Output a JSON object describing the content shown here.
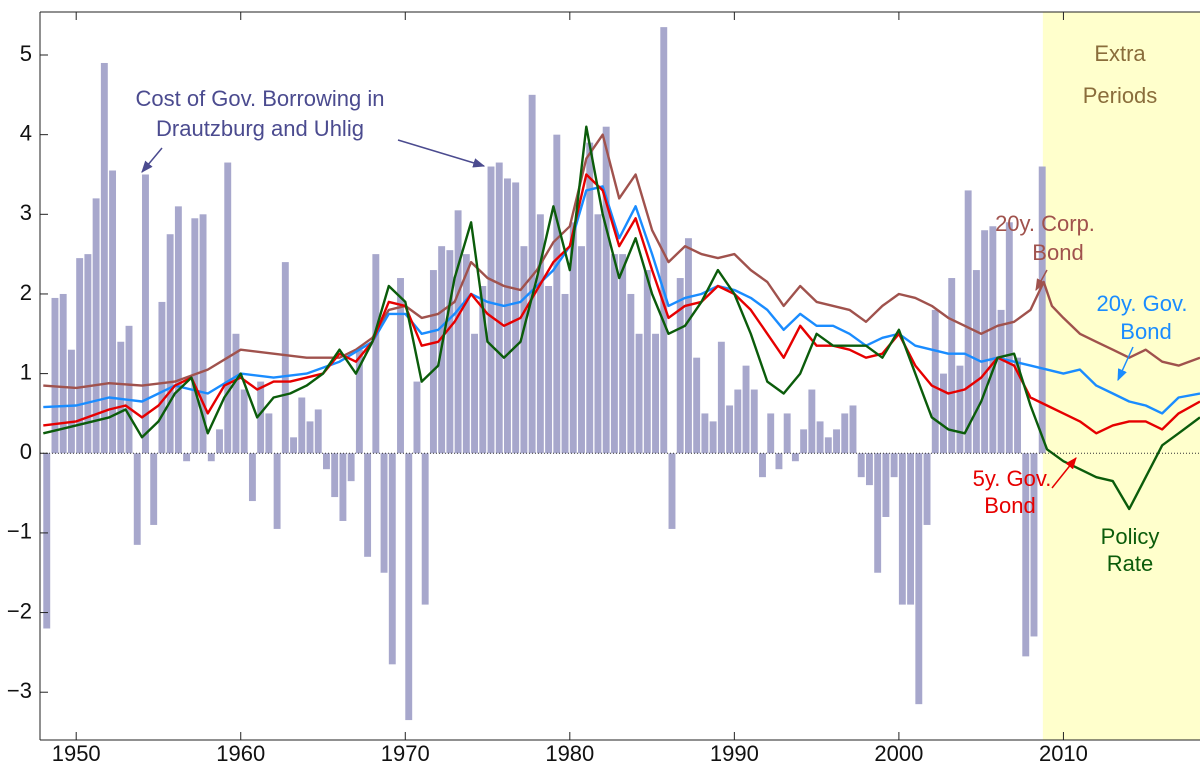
{
  "chart_data": {
    "type": "combo",
    "xlim": [
      1947.8,
      2018.3
    ],
    "ylim": [
      -3.6,
      5.54
    ],
    "xticks": [
      1950,
      1960,
      1970,
      1980,
      1990,
      2000,
      2010
    ],
    "yticks": [
      {
        "value": -3,
        "label": "−3"
      },
      {
        "value": -2,
        "label": "−2"
      },
      {
        "value": -1,
        "label": "−1"
      },
      0,
      1,
      2,
      3,
      4,
      5
    ],
    "shade_from": 2008.75,
    "shade_color": "#ffffcc",
    "shade_label": [
      "Extra",
      "Periods"
    ],
    "series": [
      {
        "type": "bar",
        "label": [
          "Cost of Gov. Borrowing in",
          "Drautzburg and Uhlig"
        ],
        "color": "#a7a7cc",
        "bar_width": 0.42,
        "x": [
          1948.0,
          1948.5,
          1949.0,
          1949.5,
          1950.0,
          1950.5,
          1951.0,
          1951.5,
          1952.0,
          1952.5,
          1953.0,
          1953.5,
          1954.0,
          1954.5,
          1955.0,
          1955.5,
          1956.0,
          1956.5,
          1957.0,
          1957.5,
          1958.0,
          1958.5,
          1959.0,
          1959.5,
          1960.0,
          1960.5,
          1961.0,
          1961.5,
          1962.0,
          1962.5,
          1963.0,
          1963.5,
          1964.0,
          1964.5,
          1965.0,
          1965.5,
          1966.0,
          1966.5,
          1967.0,
          1967.5,
          1968.0,
          1968.5,
          1969.0,
          1969.5,
          1970.0,
          1970.5,
          1971.0,
          1971.5,
          1972.0,
          1972.5,
          1973.0,
          1973.5,
          1974.0,
          1974.5,
          1975.0,
          1975.5,
          1976.0,
          1976.5,
          1977.0,
          1977.5,
          1978.0,
          1978.5,
          1979.0,
          1979.5,
          1980.0,
          1980.5,
          1981.0,
          1981.5,
          1982.0,
          1982.5,
          1983.0,
          1983.5,
          1984.0,
          1984.5,
          1985.0,
          1985.5,
          1986.0,
          1986.5,
          1987.0,
          1987.5,
          1988.0,
          1988.5,
          1989.0,
          1989.5,
          1990.0,
          1990.5,
          1991.0,
          1991.5,
          1992.0,
          1992.5,
          1993.0,
          1993.5,
          1994.0,
          1994.5,
          1995.0,
          1995.5,
          1996.0,
          1996.5,
          1997.0,
          1997.5,
          1998.0,
          1998.5,
          1999.0,
          1999.5,
          2000.0,
          2000.5,
          2001.0,
          2001.5,
          2002.0,
          2002.5,
          2003.0,
          2003.5,
          2004.0,
          2004.5,
          2005.0,
          2005.5,
          2006.0,
          2006.5,
          2007.0,
          2007.5,
          2008.0,
          2008.5
        ],
        "values": [
          -2.2,
          1.95,
          2.0,
          1.3,
          2.45,
          2.5,
          3.2,
          4.9,
          3.55,
          1.4,
          1.6,
          -1.15,
          3.5,
          -0.9,
          1.9,
          2.75,
          3.1,
          -0.1,
          2.95,
          3.0,
          -0.1,
          0.3,
          3.65,
          1.5,
          0.8,
          -0.6,
          0.9,
          0.5,
          -0.95,
          2.4,
          0.2,
          0.7,
          0.4,
          0.55,
          -0.2,
          -0.55,
          -0.85,
          -0.35,
          1.3,
          -1.3,
          2.5,
          -1.5,
          -2.65,
          2.2,
          -3.35,
          0.9,
          -1.9,
          2.3,
          2.6,
          2.55,
          3.05,
          2.5,
          1.5,
          2.1,
          3.6,
          3.65,
          3.45,
          3.4,
          2.6,
          4.5,
          3.0,
          2.1,
          4.0,
          2.0,
          2.9,
          2.6,
          3.9,
          3.0,
          4.1,
          2.5,
          2.5,
          2.0,
          1.5,
          2.3,
          1.5,
          5.35,
          -0.95,
          2.2,
          2.7,
          1.2,
          0.5,
          0.4,
          1.4,
          0.6,
          0.8,
          1.1,
          0.8,
          -0.3,
          0.5,
          -0.2,
          0.5,
          -0.1,
          0.3,
          0.8,
          0.4,
          0.2,
          0.3,
          0.5,
          0.6,
          -0.3,
          -0.4,
          -1.5,
          -0.8,
          -0.3,
          -1.9,
          -1.9,
          -3.15,
          -0.9,
          1.8,
          1.0,
          2.2,
          1.1,
          3.3,
          2.3,
          2.8,
          2.85,
          1.8,
          2.9,
          1.2,
          -2.55,
          -2.3,
          3.6
        ]
      },
      {
        "type": "line",
        "label": [
          "20y. Corp.",
          "Bond"
        ],
        "color": "#a0524d",
        "x": [
          1948,
          1950,
          1952,
          1954,
          1956,
          1958,
          1960,
          1962,
          1964,
          1966,
          1967,
          1968,
          1969,
          1970,
          1971,
          1972,
          1973,
          1974,
          1975,
          1976,
          1977,
          1978,
          1979,
          1980,
          1981,
          1982,
          1983,
          1984,
          1985,
          1986,
          1987,
          1988,
          1989,
          1990,
          1991,
          1992,
          1993,
          1994,
          1995,
          1996,
          1997,
          1998,
          1999,
          2000,
          2001,
          2002,
          2003,
          2004,
          2005,
          2006,
          2007,
          2008,
          2008.8,
          2009.3,
          2010,
          2011,
          2012,
          2013,
          2014,
          2015,
          2016,
          2017,
          2018.3
        ],
        "values": [
          0.85,
          0.82,
          0.88,
          0.85,
          0.9,
          1.05,
          1.3,
          1.25,
          1.2,
          1.2,
          1.3,
          1.45,
          1.8,
          1.85,
          1.7,
          1.75,
          1.9,
          2.4,
          2.2,
          2.1,
          2.05,
          2.3,
          2.65,
          2.85,
          3.7,
          4.0,
          3.2,
          3.5,
          2.8,
          2.4,
          2.6,
          2.5,
          2.45,
          2.5,
          2.3,
          2.15,
          1.85,
          2.1,
          1.9,
          1.85,
          1.8,
          1.65,
          1.85,
          2.0,
          1.95,
          1.85,
          1.7,
          1.6,
          1.5,
          1.6,
          1.65,
          1.8,
          2.15,
          1.85,
          1.7,
          1.5,
          1.4,
          1.3,
          1.2,
          1.3,
          1.15,
          1.1,
          1.2
        ]
      },
      {
        "type": "line",
        "label": [
          "20y. Gov.",
          "Bond"
        ],
        "color": "#1a8cff",
        "x": [
          1948,
          1950,
          1952,
          1954,
          1956,
          1958,
          1960,
          1962,
          1964,
          1966,
          1968,
          1969,
          1970,
          1971,
          1972,
          1973,
          1974,
          1975,
          1976,
          1977,
          1978,
          1979,
          1980,
          1981,
          1982,
          1983,
          1984,
          1985,
          1986,
          1987,
          1988,
          1989,
          1990,
          1991,
          1992,
          1993,
          1994,
          1995,
          1996,
          1997,
          1998,
          1999,
          2000,
          2001,
          2002,
          2003,
          2004,
          2005,
          2006,
          2007,
          2008,
          2009,
          2010,
          2011,
          2012,
          2013,
          2014,
          2015,
          2016,
          2017,
          2018.3
        ],
        "values": [
          0.58,
          0.6,
          0.7,
          0.65,
          0.85,
          0.75,
          1.0,
          0.95,
          1.0,
          1.15,
          1.4,
          1.75,
          1.75,
          1.5,
          1.55,
          1.75,
          2.0,
          1.9,
          1.85,
          1.9,
          2.1,
          2.3,
          2.6,
          3.3,
          3.35,
          2.7,
          3.1,
          2.5,
          1.85,
          1.95,
          2.0,
          2.1,
          2.05,
          1.95,
          1.8,
          1.55,
          1.75,
          1.6,
          1.6,
          1.5,
          1.35,
          1.45,
          1.5,
          1.35,
          1.3,
          1.25,
          1.25,
          1.15,
          1.2,
          1.15,
          1.1,
          1.05,
          1.0,
          1.05,
          0.85,
          0.75,
          0.65,
          0.6,
          0.5,
          0.7,
          0.75
        ]
      },
      {
        "type": "line",
        "label": [
          "5y. Gov.",
          "Bond"
        ],
        "color": "#e60000",
        "x": [
          1948,
          1950,
          1952,
          1953,
          1954,
          1955,
          1956,
          1957,
          1958,
          1959,
          1960,
          1961,
          1962,
          1963,
          1964,
          1965,
          1966,
          1967,
          1968,
          1969,
          1970,
          1971,
          1972,
          1973,
          1974,
          1975,
          1976,
          1977,
          1978,
          1979,
          1980,
          1981,
          1982,
          1983,
          1984,
          1985,
          1986,
          1987,
          1988,
          1989,
          1990,
          1991,
          1992,
          1993,
          1994,
          1995,
          1996,
          1997,
          1998,
          1999,
          2000,
          2001,
          2002,
          2003,
          2004,
          2005,
          2006,
          2007,
          2008,
          2009,
          2010,
          2011,
          2012,
          2013,
          2014,
          2015,
          2016,
          2017,
          2018.3
        ],
        "values": [
          0.35,
          0.4,
          0.55,
          0.6,
          0.45,
          0.6,
          0.85,
          0.95,
          0.5,
          0.85,
          0.95,
          0.8,
          0.9,
          0.9,
          0.95,
          1.0,
          1.25,
          1.15,
          1.4,
          1.9,
          1.85,
          1.35,
          1.4,
          1.65,
          2.0,
          1.75,
          1.6,
          1.7,
          2.05,
          2.4,
          2.6,
          3.5,
          3.3,
          2.6,
          2.95,
          2.3,
          1.7,
          1.85,
          1.9,
          2.1,
          2.0,
          1.8,
          1.5,
          1.2,
          1.6,
          1.35,
          1.35,
          1.3,
          1.2,
          1.25,
          1.5,
          1.1,
          0.85,
          0.75,
          0.8,
          0.95,
          1.2,
          1.1,
          0.7,
          0.6,
          0.5,
          0.4,
          0.25,
          0.35,
          0.4,
          0.4,
          0.3,
          0.5,
          0.65
        ]
      },
      {
        "type": "line",
        "label": [
          "Policy",
          "Rate"
        ],
        "color": "#0b5c0b",
        "x": [
          1948,
          1949,
          1950,
          1951,
          1952,
          1953,
          1954,
          1955,
          1956,
          1957,
          1958,
          1959,
          1960,
          1961,
          1962,
          1963,
          1964,
          1965,
          1966,
          1967,
          1968,
          1969,
          1970,
          1971,
          1972,
          1973,
          1974,
          1975,
          1976,
          1977,
          1978,
          1979,
          1980,
          1981,
          1982,
          1983,
          1984,
          1985,
          1986,
          1987,
          1988,
          1989,
          1990,
          1991,
          1992,
          1993,
          1994,
          1995,
          1996,
          1997,
          1998,
          1999,
          2000,
          2001,
          2002,
          2003,
          2004,
          2005,
          2006,
          2007,
          2008,
          2009,
          2010,
          2011,
          2012,
          2013,
          2014,
          2015,
          2016,
          2017,
          2018.3
        ],
        "values": [
          0.25,
          0.3,
          0.35,
          0.4,
          0.45,
          0.55,
          0.2,
          0.4,
          0.75,
          0.95,
          0.25,
          0.7,
          1.0,
          0.45,
          0.7,
          0.75,
          0.85,
          1.0,
          1.3,
          1.0,
          1.4,
          2.1,
          1.9,
          0.9,
          1.1,
          2.2,
          2.9,
          1.4,
          1.2,
          1.4,
          2.2,
          3.1,
          2.3,
          4.1,
          3.0,
          2.2,
          2.7,
          2.0,
          1.5,
          1.6,
          1.9,
          2.3,
          2.0,
          1.5,
          0.9,
          0.75,
          1.0,
          1.5,
          1.35,
          1.35,
          1.35,
          1.2,
          1.55,
          1.0,
          0.45,
          0.3,
          0.25,
          0.65,
          1.2,
          1.25,
          0.6,
          0.05,
          -0.1,
          -0.2,
          -0.3,
          -0.35,
          -0.7,
          -0.3,
          0.1,
          0.25,
          0.45
        ]
      }
    ]
  }
}
